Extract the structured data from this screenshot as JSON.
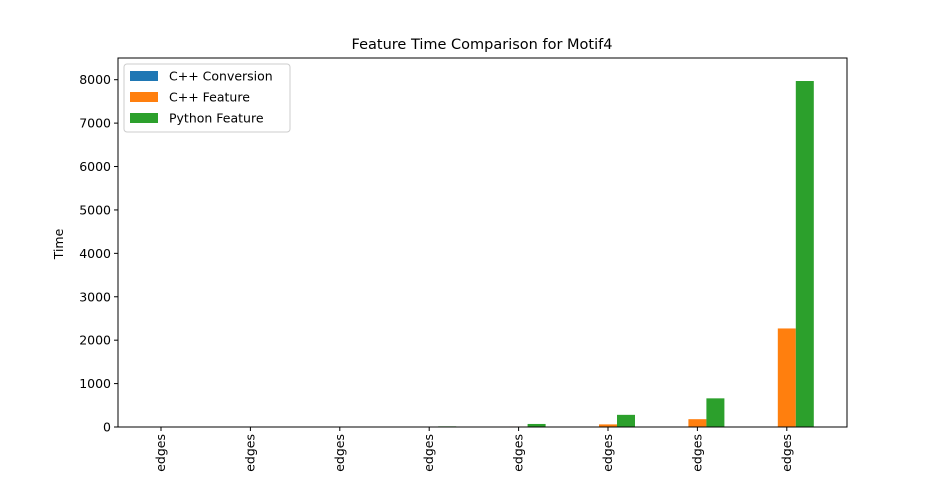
{
  "chart_data": {
    "type": "bar",
    "title": "Feature Time Comparison for Motif4",
    "xlabel": "",
    "ylabel": "Time",
    "ylim": [
      0,
      8500
    ],
    "yticks": [
      0,
      1000,
      2000,
      3000,
      4000,
      5000,
      6000,
      7000,
      8000
    ],
    "categories": [
      "edges",
      "edges",
      "edges",
      "edges",
      "edges",
      "edges",
      "edges",
      "edges"
    ],
    "series": [
      {
        "name": "C++ Conversion",
        "color": "#1f77b4",
        "values": [
          0,
          0,
          0,
          1,
          2,
          3,
          5,
          10
        ]
      },
      {
        "name": "C++ Feature",
        "color": "#ff7f0e",
        "values": [
          0,
          0,
          1,
          3,
          12,
          60,
          180,
          2270
        ]
      },
      {
        "name": "Python Feature",
        "color": "#2ca02c",
        "values": [
          0,
          1,
          4,
          15,
          70,
          280,
          660,
          7970
        ]
      }
    ],
    "legend": "top-left",
    "grid": false
  }
}
